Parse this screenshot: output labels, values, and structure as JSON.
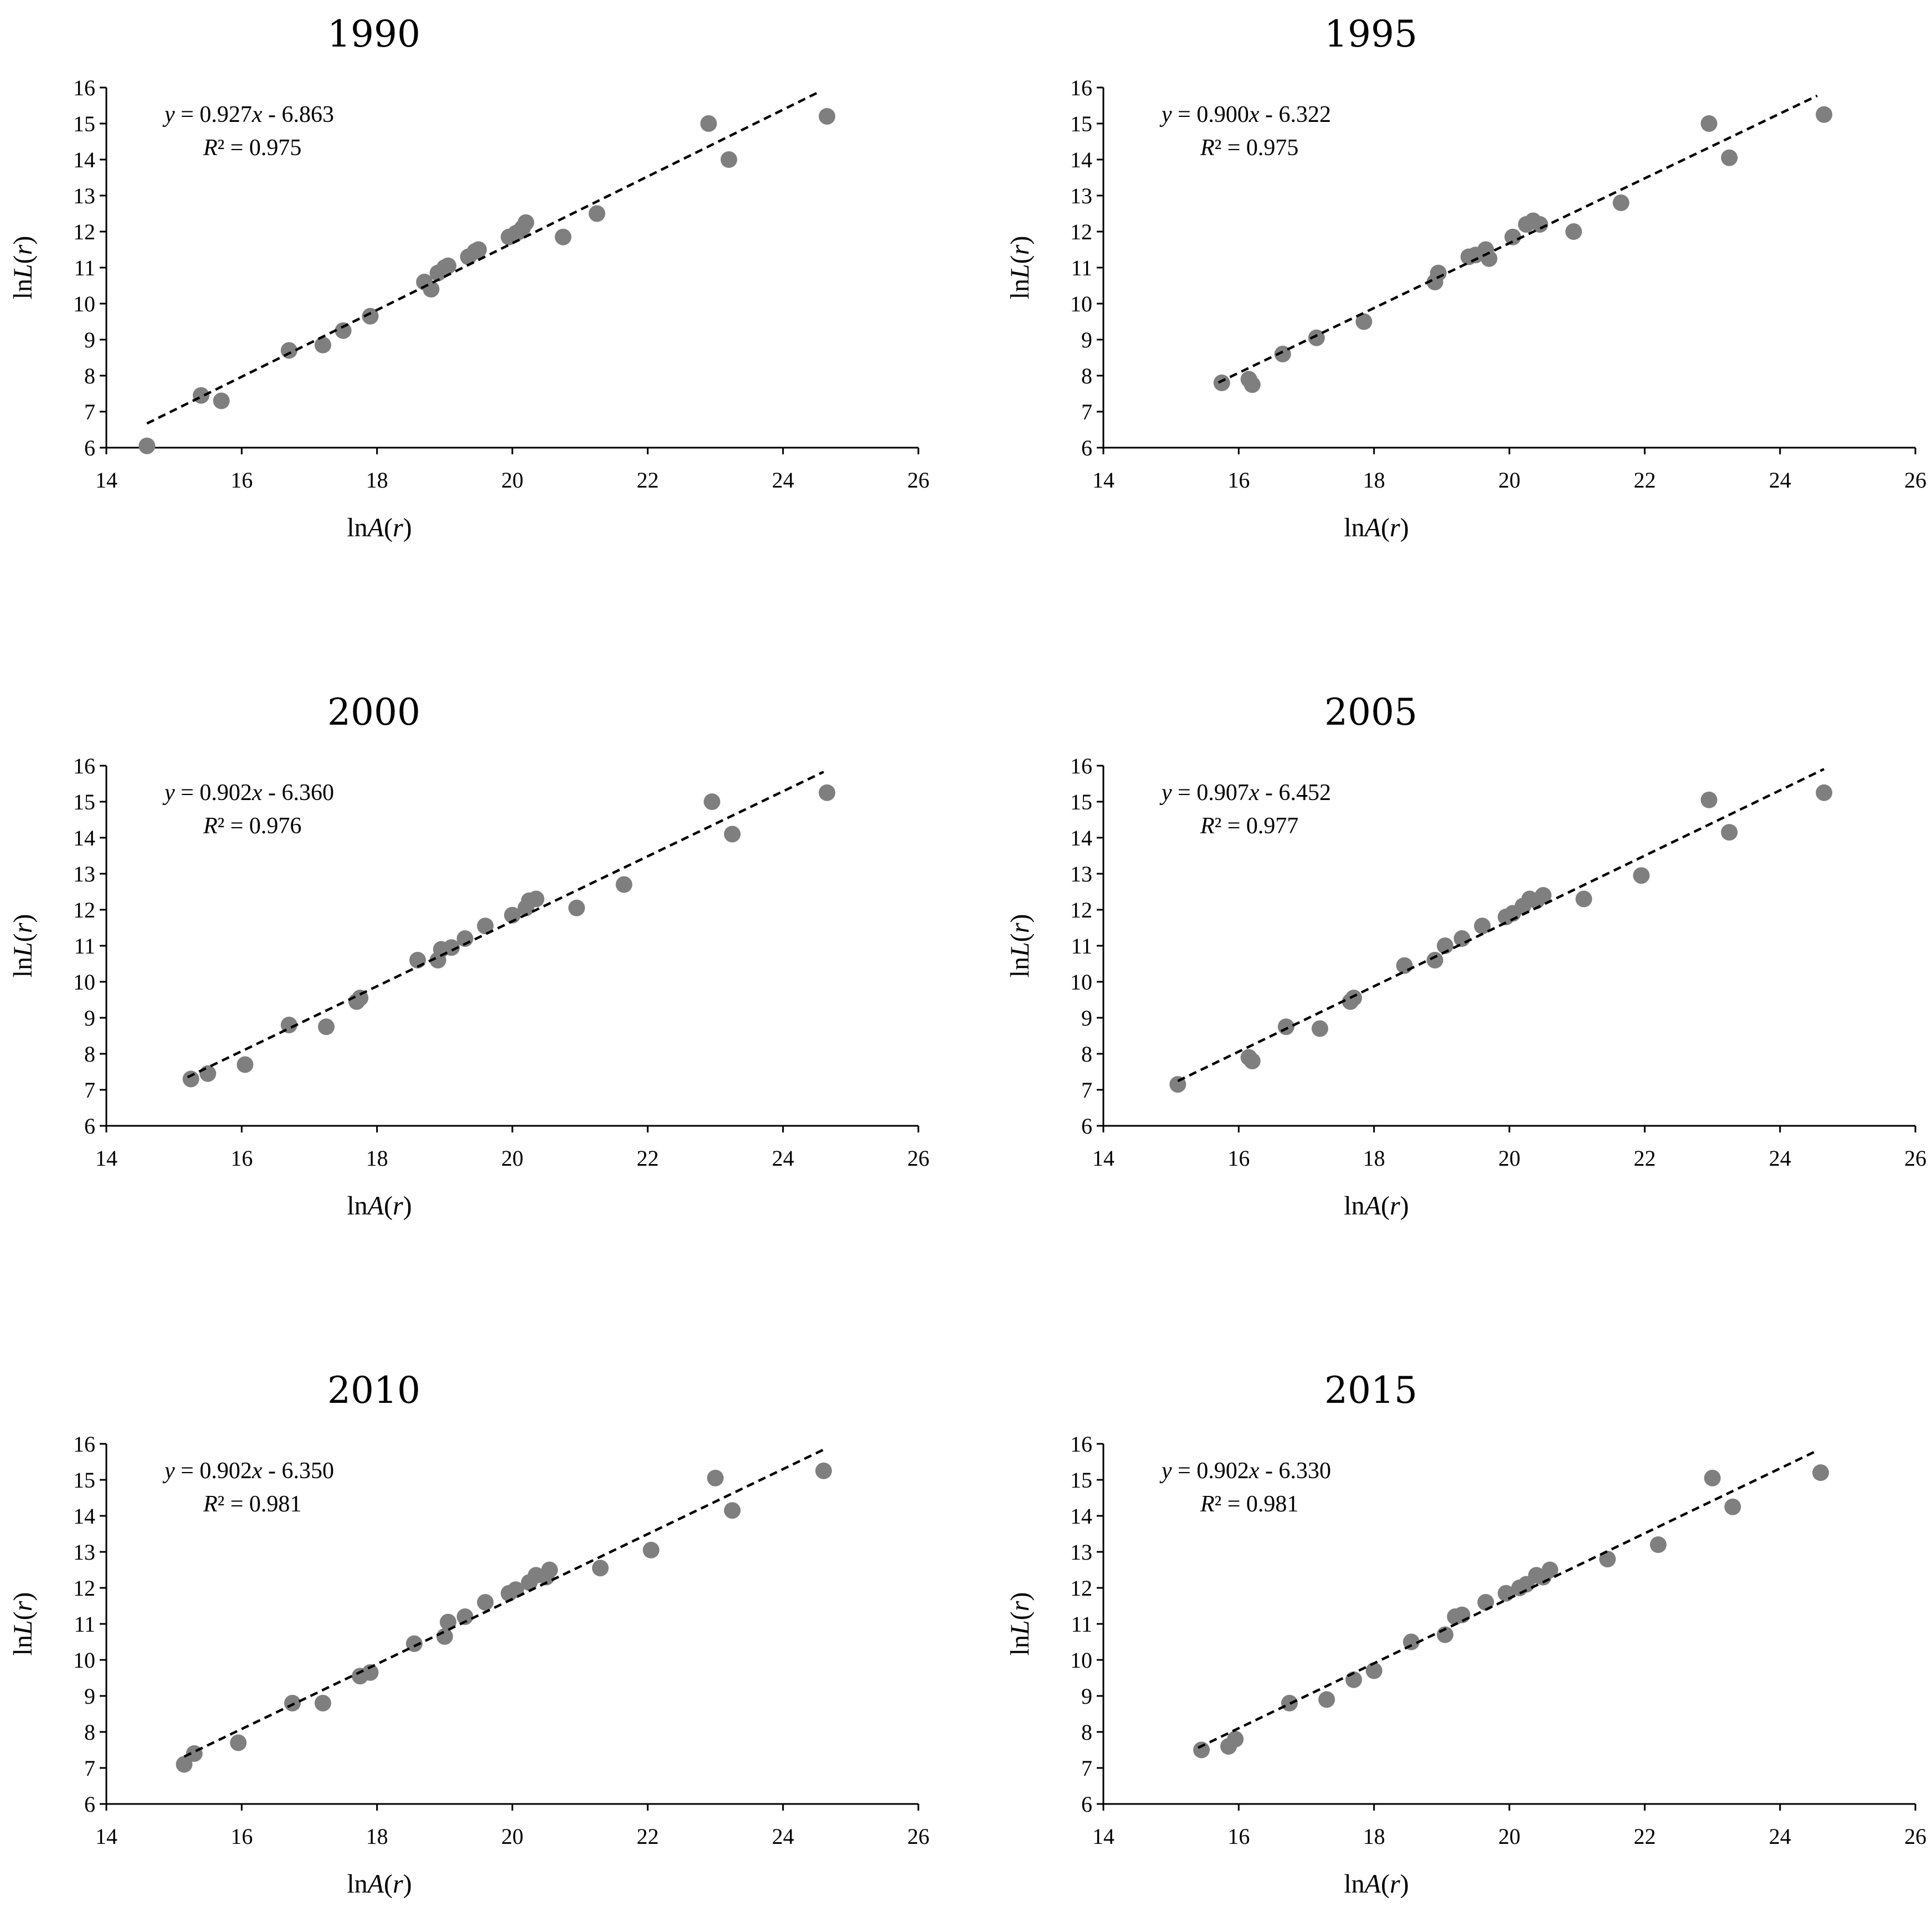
{
  "figure": {
    "axis_labels": {
      "x": {
        "prefix": "ln",
        "var": "A",
        "open": "(",
        "arg": "r",
        "close": ")"
      },
      "y": {
        "prefix": "ln",
        "var": "L",
        "open": "(",
        "arg": "r",
        "close": ")"
      }
    },
    "colors": {
      "points": "#7f7f7f",
      "trendline": "#000000",
      "axes": "#000000"
    }
  },
  "chart_data": [
    {
      "type": "scatter",
      "title": "1990",
      "xlabel": "lnA(r)",
      "ylabel": "lnL(r)",
      "xlim": [
        14,
        26
      ],
      "ylim": [
        6,
        16
      ],
      "xticks": [
        "14",
        "16",
        "18",
        "20",
        "22",
        "24",
        "26"
      ],
      "yticks": [
        "6",
        "7",
        "8",
        "9",
        "10",
        "11",
        "12",
        "13",
        "14",
        "15",
        "16"
      ],
      "equation": {
        "y": "y",
        "eq": " = 0.927",
        "x": "x",
        "rest": " - 6.863"
      },
      "r2": {
        "r": "R",
        "rest": "² = 0.975"
      },
      "trend": {
        "slope": 0.927,
        "intercept": -6.863,
        "x_range": [
          14.6,
          24.55
        ]
      },
      "points": [
        {
          "x": 14.6,
          "y": 6.05
        },
        {
          "x": 15.4,
          "y": 7.45
        },
        {
          "x": 15.7,
          "y": 7.3
        },
        {
          "x": 16.7,
          "y": 8.7
        },
        {
          "x": 17.2,
          "y": 8.85
        },
        {
          "x": 17.5,
          "y": 9.25
        },
        {
          "x": 17.9,
          "y": 9.65
        },
        {
          "x": 18.7,
          "y": 10.6
        },
        {
          "x": 18.8,
          "y": 10.4
        },
        {
          "x": 18.9,
          "y": 10.85
        },
        {
          "x": 19.0,
          "y": 11.0
        },
        {
          "x": 19.05,
          "y": 11.05
        },
        {
          "x": 19.35,
          "y": 11.3
        },
        {
          "x": 19.45,
          "y": 11.45
        },
        {
          "x": 19.5,
          "y": 11.5
        },
        {
          "x": 19.95,
          "y": 11.85
        },
        {
          "x": 20.05,
          "y": 11.95
        },
        {
          "x": 20.1,
          "y": 12.0
        },
        {
          "x": 20.15,
          "y": 12.1
        },
        {
          "x": 20.2,
          "y": 12.25
        },
        {
          "x": 20.75,
          "y": 11.85
        },
        {
          "x": 21.25,
          "y": 12.5
        },
        {
          "x": 22.9,
          "y": 15.0
        },
        {
          "x": 23.2,
          "y": 14.0
        },
        {
          "x": 24.65,
          "y": 15.2
        }
      ]
    },
    {
      "type": "scatter",
      "title": "1995",
      "xlabel": "lnA(r)",
      "ylabel": "lnL(r)",
      "xlim": [
        14,
        26
      ],
      "ylim": [
        6,
        16
      ],
      "xticks": [
        "14",
        "16",
        "18",
        "20",
        "22",
        "24",
        "26"
      ],
      "yticks": [
        "6",
        "7",
        "8",
        "9",
        "10",
        "11",
        "12",
        "13",
        "14",
        "15",
        "16"
      ],
      "equation": {
        "y": "y",
        "eq": " = 0.900",
        "x": "x",
        "rest": " - 6.322"
      },
      "r2": {
        "r": "R",
        "rest": "² = 0.975"
      },
      "trend": {
        "slope": 0.9,
        "intercept": -6.322,
        "x_range": [
          15.7,
          24.55
        ]
      },
      "points": [
        {
          "x": 15.75,
          "y": 7.8
        },
        {
          "x": 16.15,
          "y": 7.9
        },
        {
          "x": 16.2,
          "y": 7.75
        },
        {
          "x": 16.65,
          "y": 8.6
        },
        {
          "x": 17.15,
          "y": 9.05
        },
        {
          "x": 17.85,
          "y": 9.5
        },
        {
          "x": 18.9,
          "y": 10.6
        },
        {
          "x": 18.95,
          "y": 10.85
        },
        {
          "x": 19.4,
          "y": 11.3
        },
        {
          "x": 19.5,
          "y": 11.35
        },
        {
          "x": 19.65,
          "y": 11.5
        },
        {
          "x": 19.7,
          "y": 11.25
        },
        {
          "x": 20.05,
          "y": 11.85
        },
        {
          "x": 20.25,
          "y": 12.2
        },
        {
          "x": 20.35,
          "y": 12.3
        },
        {
          "x": 20.45,
          "y": 12.2
        },
        {
          "x": 20.95,
          "y": 12.0
        },
        {
          "x": 21.65,
          "y": 12.8
        },
        {
          "x": 22.95,
          "y": 15.0
        },
        {
          "x": 23.25,
          "y": 14.05
        },
        {
          "x": 24.65,
          "y": 15.25
        }
      ]
    },
    {
      "type": "scatter",
      "title": "2000",
      "xlabel": "lnA(r)",
      "ylabel": "lnL(r)",
      "xlim": [
        14,
        26
      ],
      "ylim": [
        6,
        16
      ],
      "xticks": [
        "14",
        "16",
        "18",
        "20",
        "22",
        "24",
        "26"
      ],
      "yticks": [
        "6",
        "7",
        "8",
        "9",
        "10",
        "11",
        "12",
        "13",
        "14",
        "15",
        "16"
      ],
      "equation": {
        "y": "y",
        "eq": " = 0.902",
        "x": "x",
        "rest": " - 6.360"
      },
      "r2": {
        "r": "R",
        "rest": "² = 0.976"
      },
      "trend": {
        "slope": 0.902,
        "intercept": -6.36,
        "x_range": [
          15.2,
          24.6
        ]
      },
      "points": [
        {
          "x": 15.25,
          "y": 7.3
        },
        {
          "x": 15.5,
          "y": 7.45
        },
        {
          "x": 16.05,
          "y": 7.7
        },
        {
          "x": 16.7,
          "y": 8.8
        },
        {
          "x": 17.25,
          "y": 8.75
        },
        {
          "x": 17.7,
          "y": 9.45
        },
        {
          "x": 17.75,
          "y": 9.55
        },
        {
          "x": 18.6,
          "y": 10.6
        },
        {
          "x": 18.9,
          "y": 10.6
        },
        {
          "x": 18.95,
          "y": 10.9
        },
        {
          "x": 19.1,
          "y": 10.95
        },
        {
          "x": 19.3,
          "y": 11.2
        },
        {
          "x": 19.6,
          "y": 11.55
        },
        {
          "x": 20.0,
          "y": 11.85
        },
        {
          "x": 20.2,
          "y": 12.05
        },
        {
          "x": 20.25,
          "y": 12.25
        },
        {
          "x": 20.35,
          "y": 12.3
        },
        {
          "x": 20.95,
          "y": 12.05
        },
        {
          "x": 21.65,
          "y": 12.7
        },
        {
          "x": 22.95,
          "y": 15.0
        },
        {
          "x": 23.25,
          "y": 14.1
        },
        {
          "x": 24.65,
          "y": 15.25
        }
      ]
    },
    {
      "type": "scatter",
      "title": "2005",
      "xlabel": "lnA(r)",
      "ylabel": "lnL(r)",
      "xlim": [
        14,
        26
      ],
      "ylim": [
        6,
        16
      ],
      "xticks": [
        "14",
        "16",
        "18",
        "20",
        "22",
        "24",
        "26"
      ],
      "yticks": [
        "6",
        "7",
        "8",
        "9",
        "10",
        "11",
        "12",
        "13",
        "14",
        "15",
        "16"
      ],
      "equation": {
        "y": "y",
        "eq": " = 0.907",
        "x": "x",
        "rest": " - 6.452"
      },
      "r2": {
        "r": "R",
        "rest": "² = 0.977"
      },
      "trend": {
        "slope": 0.907,
        "intercept": -6.452,
        "x_range": [
          15.1,
          24.65
        ]
      },
      "points": [
        {
          "x": 15.1,
          "y": 7.15
        },
        {
          "x": 16.15,
          "y": 7.9
        },
        {
          "x": 16.2,
          "y": 7.8
        },
        {
          "x": 16.7,
          "y": 8.75
        },
        {
          "x": 17.2,
          "y": 8.7
        },
        {
          "x": 17.65,
          "y": 9.45
        },
        {
          "x": 17.7,
          "y": 9.55
        },
        {
          "x": 18.45,
          "y": 10.45
        },
        {
          "x": 18.9,
          "y": 10.6
        },
        {
          "x": 19.05,
          "y": 11.0
        },
        {
          "x": 19.3,
          "y": 11.2
        },
        {
          "x": 19.6,
          "y": 11.55
        },
        {
          "x": 19.95,
          "y": 11.8
        },
        {
          "x": 20.05,
          "y": 11.9
        },
        {
          "x": 20.2,
          "y": 12.1
        },
        {
          "x": 20.3,
          "y": 12.3
        },
        {
          "x": 20.4,
          "y": 12.25
        },
        {
          "x": 20.5,
          "y": 12.4
        },
        {
          "x": 21.1,
          "y": 12.3
        },
        {
          "x": 21.95,
          "y": 12.95
        },
        {
          "x": 22.95,
          "y": 15.05
        },
        {
          "x": 23.25,
          "y": 14.15
        },
        {
          "x": 24.65,
          "y": 15.25
        }
      ]
    },
    {
      "type": "scatter",
      "title": "2010",
      "xlabel": "lnA(r)",
      "ylabel": "lnL(r)",
      "xlim": [
        14,
        26
      ],
      "ylim": [
        6,
        16
      ],
      "xticks": [
        "14",
        "16",
        "18",
        "20",
        "22",
        "24",
        "26"
      ],
      "yticks": [
        "6",
        "7",
        "8",
        "9",
        "10",
        "11",
        "12",
        "13",
        "14",
        "15",
        "16"
      ],
      "equation": {
        "y": "y",
        "eq": " = 0.902",
        "x": "x",
        "rest": " - 6.350"
      },
      "r2": {
        "r": "R",
        "rest": "² = 0.981"
      },
      "trend": {
        "slope": 0.902,
        "intercept": -6.35,
        "x_range": [
          15.15,
          24.6
        ]
      },
      "points": [
        {
          "x": 15.15,
          "y": 7.1
        },
        {
          "x": 15.3,
          "y": 7.4
        },
        {
          "x": 15.95,
          "y": 7.7
        },
        {
          "x": 16.75,
          "y": 8.8
        },
        {
          "x": 17.2,
          "y": 8.8
        },
        {
          "x": 17.75,
          "y": 9.55
        },
        {
          "x": 17.9,
          "y": 9.65
        },
        {
          "x": 18.55,
          "y": 10.45
        },
        {
          "x": 19.0,
          "y": 10.65
        },
        {
          "x": 19.05,
          "y": 11.05
        },
        {
          "x": 19.3,
          "y": 11.2
        },
        {
          "x": 19.6,
          "y": 11.6
        },
        {
          "x": 19.95,
          "y": 11.85
        },
        {
          "x": 20.05,
          "y": 11.95
        },
        {
          "x": 20.25,
          "y": 12.15
        },
        {
          "x": 20.35,
          "y": 12.35
        },
        {
          "x": 20.5,
          "y": 12.3
        },
        {
          "x": 20.55,
          "y": 12.5
        },
        {
          "x": 21.3,
          "y": 12.55
        },
        {
          "x": 22.05,
          "y": 13.05
        },
        {
          "x": 23.0,
          "y": 15.05
        },
        {
          "x": 23.25,
          "y": 14.15
        },
        {
          "x": 24.6,
          "y": 15.25
        }
      ]
    },
    {
      "type": "scatter",
      "title": "2015",
      "xlabel": "lnA(r)",
      "ylabel": "lnL(r)",
      "xlim": [
        14,
        26
      ],
      "ylim": [
        6,
        16
      ],
      "xticks": [
        "14",
        "16",
        "18",
        "20",
        "22",
        "24",
        "26"
      ],
      "yticks": [
        "6",
        "7",
        "8",
        "9",
        "10",
        "11",
        "12",
        "13",
        "14",
        "15",
        "16"
      ],
      "equation": {
        "y": "y",
        "eq": " = 0.902",
        "x": "x",
        "rest": " - 6.330"
      },
      "r2": {
        "r": "R",
        "rest": "² = 0.981"
      },
      "trend": {
        "slope": 0.902,
        "intercept": -6.33,
        "x_range": [
          15.4,
          24.5
        ]
      },
      "points": [
        {
          "x": 15.45,
          "y": 7.5
        },
        {
          "x": 15.85,
          "y": 7.6
        },
        {
          "x": 15.95,
          "y": 7.8
        },
        {
          "x": 16.75,
          "y": 8.8
        },
        {
          "x": 17.3,
          "y": 8.9
        },
        {
          "x": 17.7,
          "y": 9.45
        },
        {
          "x": 18.0,
          "y": 9.7
        },
        {
          "x": 18.55,
          "y": 10.5
        },
        {
          "x": 19.05,
          "y": 10.7
        },
        {
          "x": 19.2,
          "y": 11.2
        },
        {
          "x": 19.3,
          "y": 11.25
        },
        {
          "x": 19.65,
          "y": 11.6
        },
        {
          "x": 19.95,
          "y": 11.85
        },
        {
          "x": 20.15,
          "y": 12.0
        },
        {
          "x": 20.25,
          "y": 12.1
        },
        {
          "x": 20.4,
          "y": 12.35
        },
        {
          "x": 20.5,
          "y": 12.3
        },
        {
          "x": 20.6,
          "y": 12.5
        },
        {
          "x": 21.45,
          "y": 12.8
        },
        {
          "x": 22.2,
          "y": 13.2
        },
        {
          "x": 23.0,
          "y": 15.05
        },
        {
          "x": 23.3,
          "y": 14.25
        },
        {
          "x": 24.6,
          "y": 15.2
        }
      ]
    }
  ]
}
